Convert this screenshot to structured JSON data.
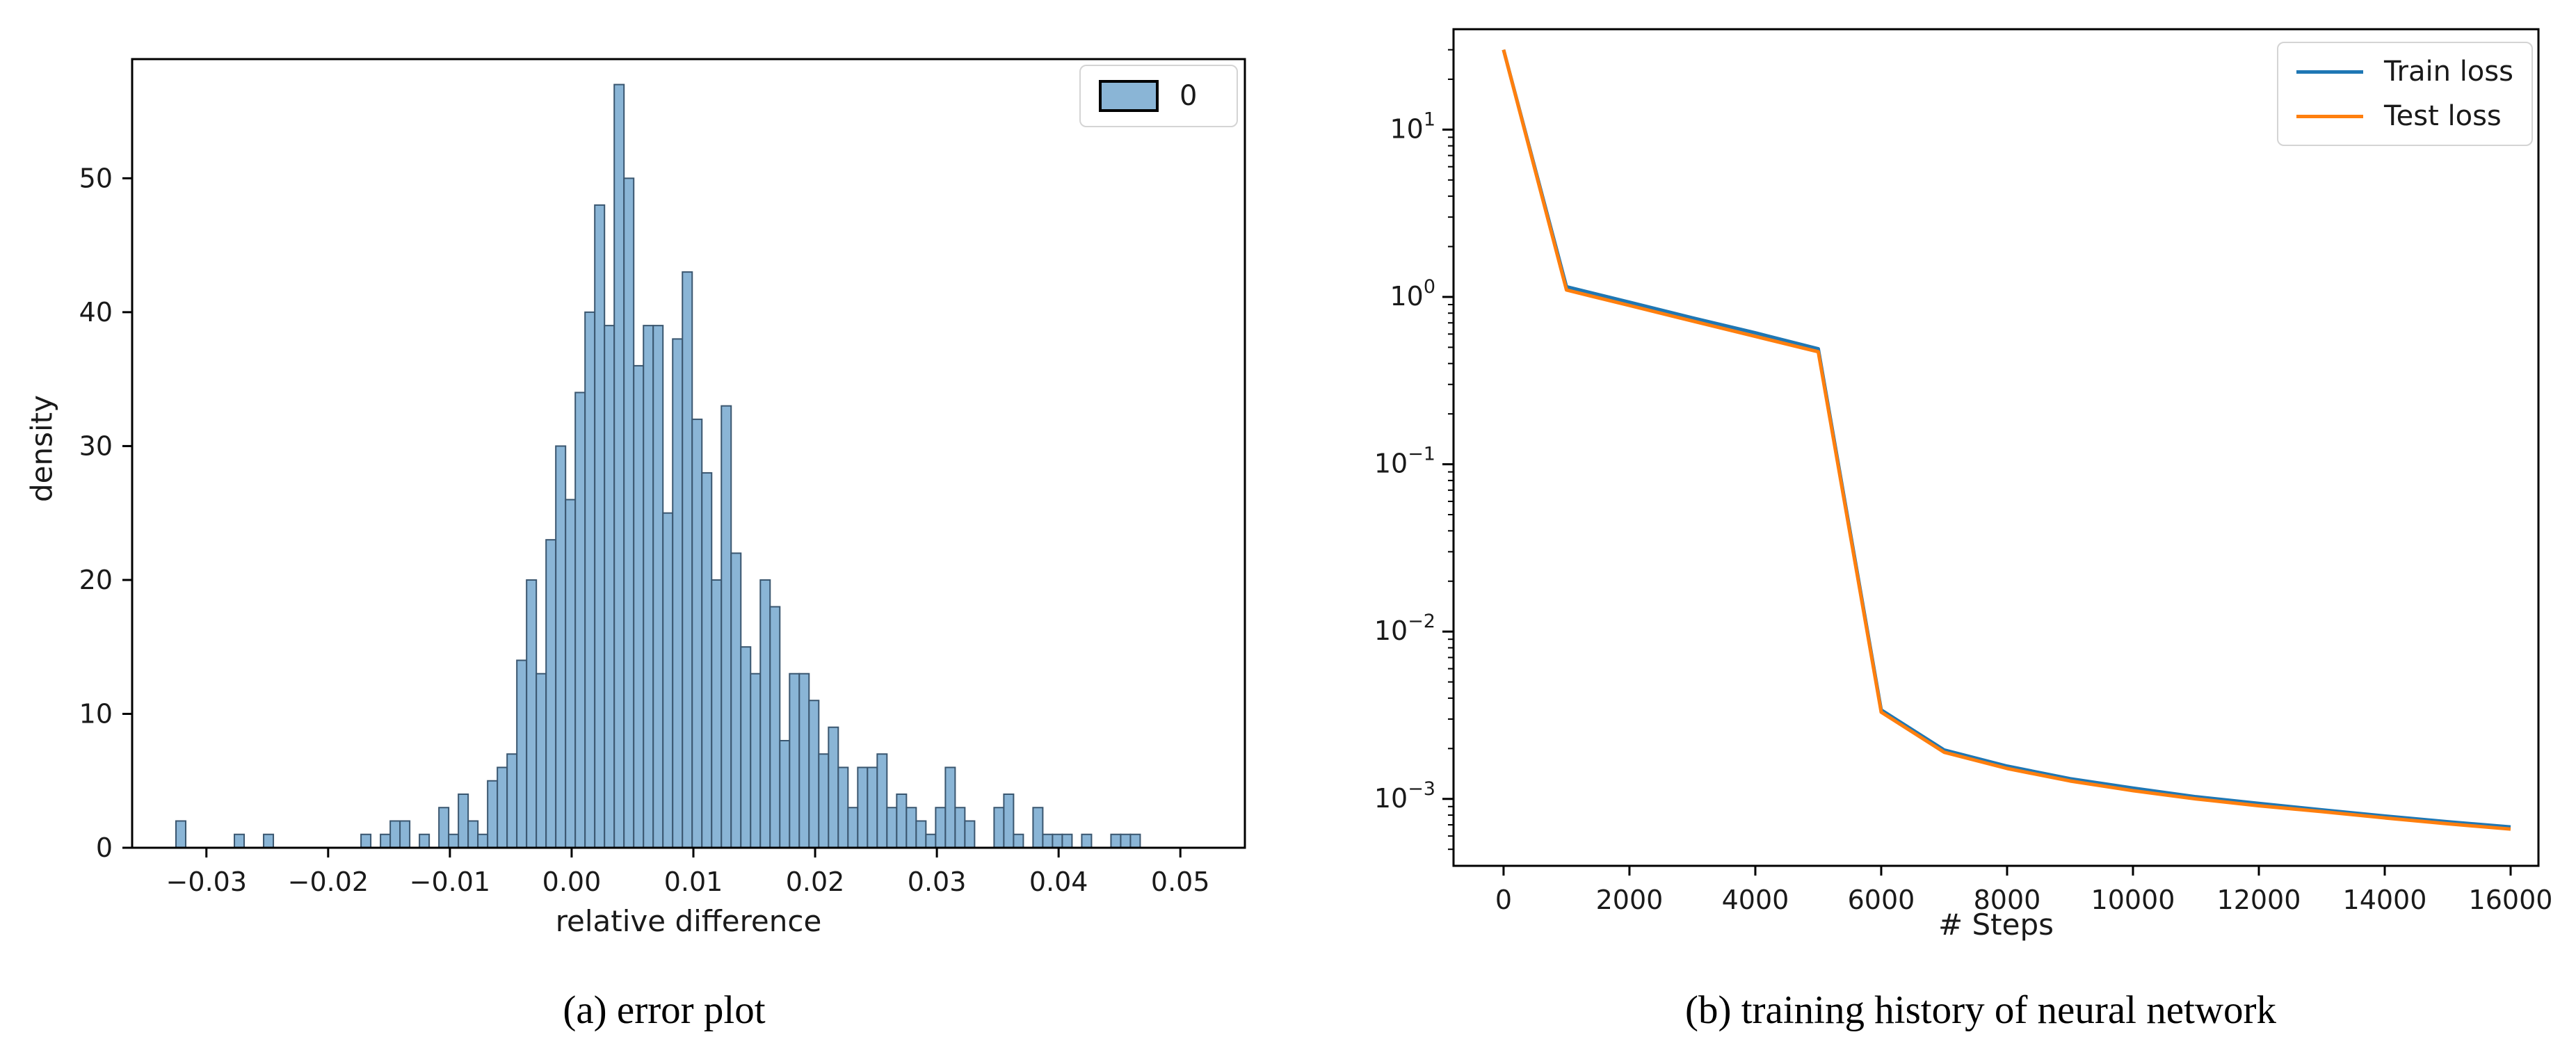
{
  "figure": {
    "caption_a": "(a)  error plot",
    "caption_b": "(b)  training history of neural network"
  },
  "chart_data": [
    {
      "type": "bar",
      "title": "",
      "xlabel": "relative difference",
      "ylabel": "density",
      "xlim": [
        -0.0361,
        0.0553
      ],
      "ylim": [
        0,
        58.9
      ],
      "xticks": [
        -0.03,
        -0.02,
        -0.01,
        0.0,
        0.01,
        0.02,
        0.03,
        0.04,
        0.05
      ],
      "xtick_labels": [
        "−0.03",
        "−0.02",
        "−0.01",
        "0.00",
        "0.01",
        "0.02",
        "0.03",
        "0.04",
        "0.05"
      ],
      "yticks": [
        0,
        10,
        20,
        30,
        40,
        50
      ],
      "ytick_labels": [
        "0",
        "10",
        "20",
        "30",
        "40",
        "50"
      ],
      "grid": false,
      "legend": {
        "position": "upper right",
        "entries": [
          {
            "label": "0"
          }
        ]
      },
      "bar_fill": "#8ab5d6",
      "bar_edge": "#3a566f",
      "bin_start": -0.0325,
      "bin_width": 0.0008,
      "values": [
        2,
        0,
        0,
        0,
        0,
        0,
        1,
        0,
        0,
        1,
        0,
        0,
        0,
        0,
        0,
        0,
        0,
        0,
        0,
        1,
        0,
        1,
        2,
        2,
        0,
        1,
        0,
        3,
        1,
        4,
        2,
        1,
        5,
        6,
        7,
        14,
        20,
        13,
        23,
        30,
        26,
        34,
        40,
        48,
        39,
        57,
        50,
        36,
        39,
        39,
        25,
        38,
        43,
        32,
        28,
        20,
        33,
        22,
        15,
        13,
        20,
        18,
        8,
        13,
        13,
        11,
        7,
        9,
        6,
        3,
        6,
        6,
        7,
        3,
        4,
        3,
        2,
        1,
        3,
        6,
        3,
        2,
        0,
        0,
        3,
        4,
        1,
        0,
        3,
        1,
        1,
        1,
        0,
        1,
        0,
        0,
        1,
        1,
        1,
        0
      ]
    },
    {
      "type": "line",
      "title": "",
      "xlabel": "# Steps",
      "ylabel": "",
      "yscale": "log",
      "xlim": [
        -795,
        16442
      ],
      "ylim_log_exponents": [
        -3.4,
        1.6
      ],
      "xticks": [
        0,
        2000,
        4000,
        6000,
        8000,
        10000,
        12000,
        14000,
        16000
      ],
      "xtick_labels": [
        "0",
        "2000",
        "4000",
        "6000",
        "8000",
        "10000",
        "12000",
        "14000",
        "16000"
      ],
      "ytick_exponents": [
        1,
        0,
        -1,
        -2,
        -3
      ],
      "grid": false,
      "legend": {
        "position": "upper right"
      },
      "x": [
        0,
        1000,
        2000,
        3000,
        4000,
        5000,
        6000,
        7000,
        8000,
        9000,
        10000,
        11000,
        12000,
        13000,
        14000,
        15000,
        16000
      ],
      "series": [
        {
          "name": "Train loss",
          "color": "#1f77b4",
          "values": [
            30,
            1.15,
            0.93,
            0.75,
            0.61,
            0.49,
            0.0034,
            0.00196,
            0.00157,
            0.00132,
            0.00116,
            0.00103,
            0.00094,
            0.00086,
            0.00079,
            0.00073,
            0.00068
          ]
        },
        {
          "name": "Test loss",
          "color": "#ff7f0e",
          "values": [
            30,
            1.1,
            0.889,
            0.718,
            0.581,
            0.47,
            0.0033,
            0.0019,
            0.00152,
            0.00128,
            0.00112,
            0.001,
            0.00091,
            0.00084,
            0.00077,
            0.00071,
            0.00066
          ]
        }
      ]
    }
  ]
}
